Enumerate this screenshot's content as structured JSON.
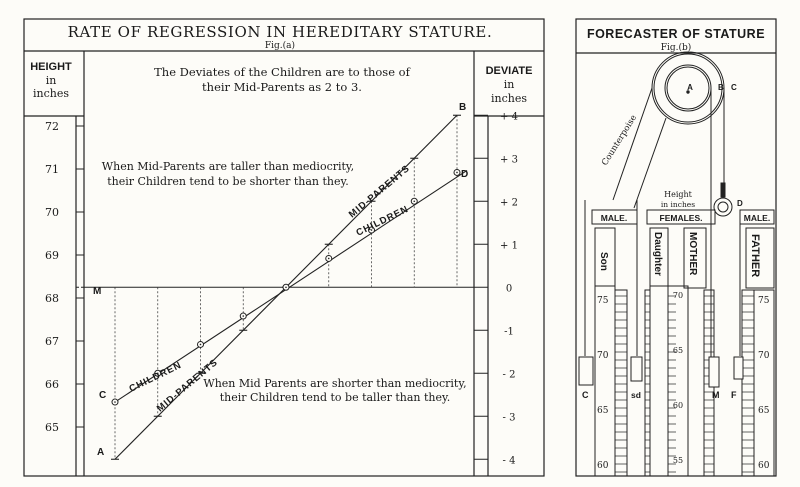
{
  "left_panel": {
    "title": "RATE OF REGRESSION IN HEREDITARY STATURE.",
    "fig_label": "Fig.(a)",
    "height_header": [
      "HEIGHT",
      "in",
      "inches"
    ],
    "deviate_header": [
      "DEVIATE",
      "in",
      "inches"
    ],
    "ratio_note": [
      "The Deviates of the Children are to those of",
      "their Mid-Parents as 2 to 3."
    ],
    "taller_note": [
      "When Mid-Parents are taller than mediocrity,",
      "their Children tend to be shorter than they."
    ],
    "shorter_note": [
      "When Mid Parents are shorter than mediocrity,",
      "their Children tend to be taller than they."
    ],
    "height_ticks": [
      "72",
      "71",
      "70",
      "69",
      "68",
      "67",
      "66",
      "65"
    ],
    "deviate_ticks": [
      "+ 4",
      "+ 3",
      "+ 2",
      "+ 1",
      "0",
      "-1",
      "- 2",
      "- 3",
      "- 4"
    ],
    "line_labels": {
      "mid_parents_upper": "MID-PARENTS",
      "children_upper": "CHILDREN",
      "children_lower": "CHILDREN",
      "mid_parents_lower": "MID-PARENTS"
    },
    "point_labels": {
      "M": "M",
      "A": "A",
      "B": "B",
      "C": "C",
      "D": "D"
    }
  },
  "right_panel": {
    "title": "FORECASTER OF STATURE",
    "fig_label": "Fig.(b)",
    "counterpoise": "Counterpoise",
    "height_label": [
      "Height",
      "in inches"
    ],
    "pulley_labels": [
      "A",
      "B",
      "C",
      "D"
    ],
    "male_left": "MALE.",
    "females": "FEMALES.",
    "male_right": "MALE.",
    "son": "Son",
    "daughter": "Daughter",
    "mother": "MOTHER",
    "father": "FATHER",
    "son_scale": [
      "75",
      "70",
      "65",
      "60"
    ],
    "mother_scale": [
      "70",
      "65",
      "60",
      "55"
    ],
    "father_scale": [
      "75",
      "70",
      "65",
      "60"
    ],
    "weight_labels": [
      "C",
      "sd",
      "M",
      "F"
    ]
  },
  "chart_data": {
    "type": "line",
    "title": "RATE OF REGRESSION IN HEREDITARY STATURE.",
    "ylabel": "HEIGHT in inches",
    "y2label": "DEVIATE in inches",
    "ylim": [
      64.5,
      72.5
    ],
    "mediocrity": 68.25,
    "series": [
      {
        "name": "MID-PARENTS",
        "deviates": [
          -4,
          -3,
          -2,
          -1,
          0,
          1,
          2,
          3,
          4
        ]
      },
      {
        "name": "CHILDREN",
        "deviates": [
          -2.67,
          -2,
          -1.33,
          -0.67,
          0,
          0.67,
          1.33,
          2,
          2.67
        ]
      }
    ]
  }
}
